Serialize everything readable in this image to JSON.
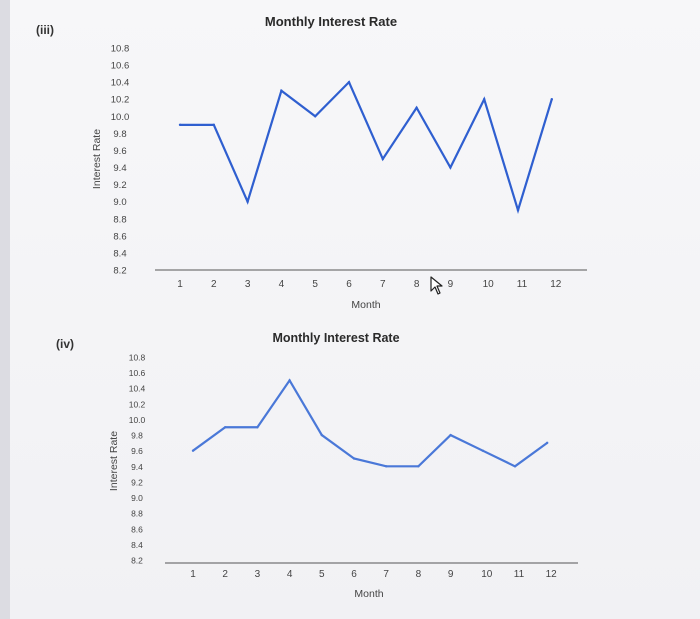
{
  "panels": [
    {
      "label": "(iii)",
      "chart_data": {
        "type": "line",
        "title": "Monthly Interest Rate",
        "xlabel": "Month",
        "ylabel": "Interest Rate",
        "categories": [
          "1",
          "2",
          "3",
          "4",
          "5",
          "6",
          "7",
          "8",
          "9",
          "10",
          "11",
          "12"
        ],
        "yticks": [
          "10.8",
          "10.6",
          "10.4",
          "10.2",
          "10.0",
          "9.8",
          "9.6",
          "9.4",
          "9.2",
          "9.0",
          "8.8",
          "8.6",
          "8.4",
          "8.2"
        ],
        "ylim": [
          8.2,
          10.8
        ],
        "values": [
          9.9,
          9.9,
          9.0,
          10.3,
          10.0,
          10.4,
          9.5,
          10.1,
          9.4,
          10.2,
          8.9,
          10.2
        ],
        "line_color": "#2f5fd0",
        "grid": false
      }
    },
    {
      "label": "(iv)",
      "chart_data": {
        "type": "line",
        "title": "Monthly Interest Rate",
        "xlabel": "Month",
        "ylabel": "Interest Rate",
        "categories": [
          "1",
          "2",
          "3",
          "4",
          "5",
          "6",
          "7",
          "8",
          "9",
          "10",
          "11",
          "12"
        ],
        "yticks": [
          "10.8",
          "10.6",
          "10.4",
          "10.2",
          "10.0",
          "9.8",
          "9.6",
          "9.4",
          "9.2",
          "9.0",
          "8.8",
          "8.6",
          "8.4",
          "8.2"
        ],
        "ylim": [
          8.2,
          10.8
        ],
        "values": [
          9.6,
          9.9,
          9.9,
          10.5,
          9.8,
          9.5,
          9.4,
          9.4,
          9.8,
          9.6,
          9.4,
          9.7
        ],
        "line_color": "#4a78d8",
        "grid": false
      }
    }
  ]
}
